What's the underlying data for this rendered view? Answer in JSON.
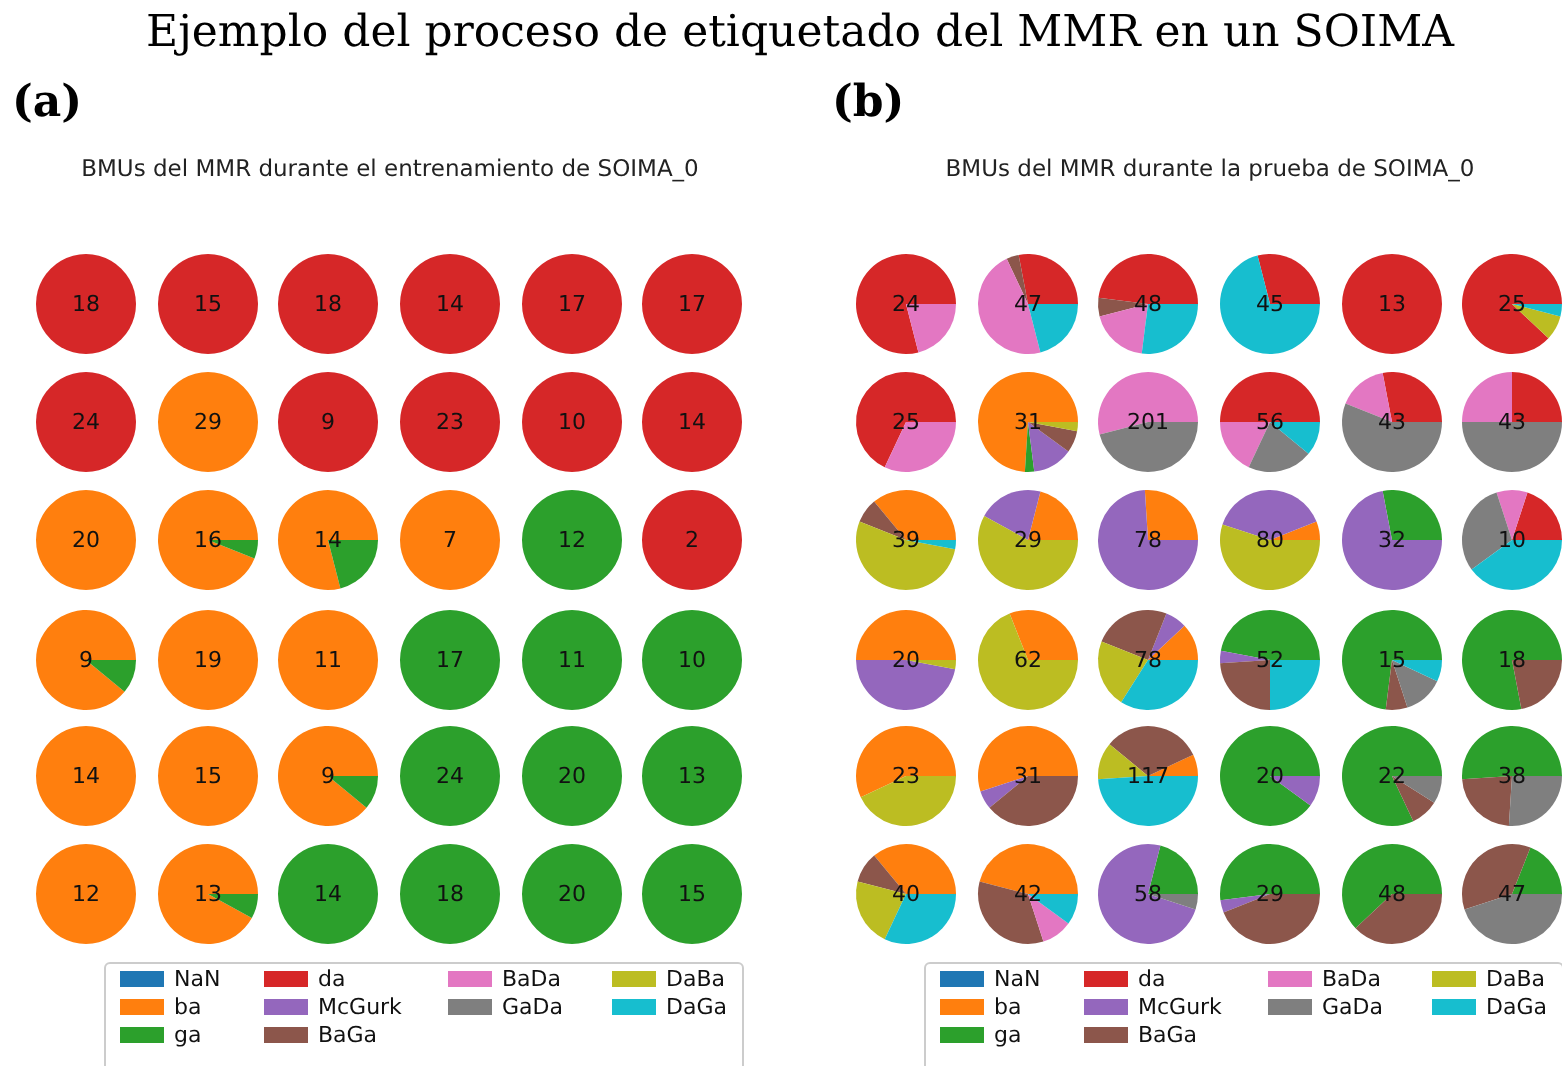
{
  "chart_data": [
    {
      "type": "pie",
      "title": "Ejemplo del proceso de etiquetado del MMR en un SOIMA",
      "subtitle": "BMUs del MMR durante el entrenamiento de SOIMA_0",
      "annotations": [
        "(a)"
      ],
      "legend": "bottom",
      "categories": [
        "NaN",
        "ba",
        "ga",
        "da",
        "McGurk",
        "BaGa",
        "BaDa",
        "GaDa",
        "DaBa",
        "DaGa"
      ],
      "colors": [
        "#1f77b4",
        "#ff7f0e",
        "#2ca02c",
        "#d62728",
        "#9467bd",
        "#8c564b",
        "#e377c2",
        "#7f7f7f",
        "#bcbd22",
        "#17becf"
      ],
      "series": [
        {
          "name": "18",
          "values": [
            null,
            null,
            null,
            100,
            null,
            null,
            null,
            null,
            null,
            null
          ]
        },
        {
          "name": "15",
          "values": [
            null,
            null,
            null,
            100,
            null,
            null,
            null,
            null,
            null,
            null
          ]
        },
        {
          "name": "18",
          "values": [
            null,
            null,
            null,
            100,
            null,
            null,
            null,
            null,
            null,
            null
          ]
        },
        {
          "name": "14",
          "values": [
            null,
            null,
            null,
            100,
            null,
            null,
            null,
            null,
            null,
            null
          ]
        },
        {
          "name": "17",
          "values": [
            null,
            null,
            null,
            100,
            null,
            null,
            null,
            null,
            null,
            null
          ]
        },
        {
          "name": "17",
          "values": [
            null,
            null,
            null,
            100,
            null,
            null,
            null,
            null,
            null,
            null
          ]
        },
        {
          "name": "24",
          "values": [
            null,
            null,
            null,
            100,
            null,
            null,
            null,
            null,
            null,
            null
          ]
        },
        {
          "name": "29",
          "values": [
            null,
            100,
            null,
            null,
            null,
            null,
            null,
            null,
            null,
            null
          ]
        },
        {
          "name": "9",
          "values": [
            null,
            null,
            null,
            100,
            null,
            null,
            null,
            null,
            null,
            null
          ]
        },
        {
          "name": "23",
          "values": [
            null,
            null,
            null,
            100,
            null,
            null,
            null,
            null,
            null,
            null
          ]
        },
        {
          "name": "10",
          "values": [
            null,
            null,
            null,
            100,
            null,
            null,
            null,
            null,
            null,
            null
          ]
        },
        {
          "name": "14",
          "values": [
            null,
            null,
            null,
            100,
            null,
            null,
            null,
            null,
            null,
            null
          ]
        },
        {
          "name": "20",
          "values": [
            null,
            100,
            null,
            null,
            null,
            null,
            null,
            null,
            null,
            null
          ]
        },
        {
          "name": "16",
          "values": [
            null,
            94,
            6,
            null,
            null,
            null,
            null,
            null,
            null,
            null
          ]
        },
        {
          "name": "14",
          "values": [
            null,
            79,
            21,
            null,
            null,
            null,
            null,
            null,
            null,
            null
          ]
        },
        {
          "name": "7",
          "values": [
            null,
            100,
            null,
            null,
            null,
            null,
            null,
            null,
            null,
            null
          ]
        },
        {
          "name": "12",
          "values": [
            null,
            null,
            100,
            null,
            null,
            null,
            null,
            null,
            null,
            null
          ]
        },
        {
          "name": "2",
          "values": [
            null,
            null,
            null,
            100,
            null,
            null,
            null,
            null,
            null,
            null
          ]
        },
        {
          "name": "9",
          "values": [
            null,
            89,
            11,
            null,
            null,
            null,
            null,
            null,
            null,
            null
          ]
        },
        {
          "name": "19",
          "values": [
            null,
            100,
            null,
            null,
            null,
            null,
            null,
            null,
            null,
            null
          ]
        },
        {
          "name": "11",
          "values": [
            null,
            100,
            null,
            null,
            null,
            null,
            null,
            null,
            null,
            null
          ]
        },
        {
          "name": "17",
          "values": [
            null,
            null,
            100,
            null,
            null,
            null,
            null,
            null,
            null,
            null
          ]
        },
        {
          "name": "11",
          "values": [
            null,
            null,
            100,
            null,
            null,
            null,
            null,
            null,
            null,
            null
          ]
        },
        {
          "name": "10",
          "values": [
            null,
            null,
            100,
            null,
            null,
            null,
            null,
            null,
            null,
            null
          ]
        },
        {
          "name": "14",
          "values": [
            null,
            100,
            null,
            null,
            null,
            null,
            null,
            null,
            null,
            null
          ]
        },
        {
          "name": "15",
          "values": [
            null,
            100,
            null,
            null,
            null,
            null,
            null,
            null,
            null,
            null
          ]
        },
        {
          "name": "9",
          "values": [
            null,
            89,
            11,
            null,
            null,
            null,
            null,
            null,
            null,
            null
          ]
        },
        {
          "name": "24",
          "values": [
            null,
            null,
            100,
            null,
            null,
            null,
            null,
            null,
            null,
            null
          ]
        },
        {
          "name": "20",
          "values": [
            null,
            null,
            100,
            null,
            null,
            null,
            null,
            null,
            null,
            null
          ]
        },
        {
          "name": "13",
          "values": [
            null,
            null,
            100,
            null,
            null,
            null,
            null,
            null,
            null,
            null
          ]
        },
        {
          "name": "12",
          "values": [
            null,
            100,
            null,
            null,
            null,
            null,
            null,
            null,
            null,
            null
          ]
        },
        {
          "name": "13",
          "values": [
            null,
            92,
            8,
            null,
            null,
            null,
            null,
            null,
            null,
            null
          ]
        },
        {
          "name": "14",
          "values": [
            null,
            null,
            100,
            null,
            null,
            null,
            null,
            null,
            null,
            null
          ]
        },
        {
          "name": "18",
          "values": [
            null,
            null,
            100,
            null,
            null,
            null,
            null,
            null,
            null,
            null
          ]
        },
        {
          "name": "20",
          "values": [
            null,
            null,
            100,
            null,
            null,
            null,
            null,
            null,
            null,
            null
          ]
        },
        {
          "name": "15",
          "values": [
            null,
            null,
            100,
            null,
            null,
            null,
            null,
            null,
            null,
            null
          ]
        }
      ]
    },
    {
      "type": "pie",
      "subtitle": "BMUs del MMR durante la prueba de SOIMA_0",
      "annotations": [
        "(b)"
      ],
      "legend": "bottom",
      "categories": [
        "NaN",
        "ba",
        "ga",
        "da",
        "McGurk",
        "BaGa",
        "BaDa",
        "GaDa",
        "DaBa",
        "DaGa"
      ],
      "colors": [
        "#1f77b4",
        "#ff7f0e",
        "#2ca02c",
        "#d62728",
        "#9467bd",
        "#8c564b",
        "#e377c2",
        "#7f7f7f",
        "#bcbd22",
        "#17becf"
      ],
      "series": [
        {
          "name": "24",
          "values": [
            null,
            null,
            null,
            79,
            null,
            null,
            21,
            null,
            null,
            null
          ]
        },
        {
          "name": "47",
          "values": [
            null,
            null,
            null,
            28,
            null,
            4,
            47,
            null,
            null,
            21
          ]
        },
        {
          "name": "48",
          "values": [
            null,
            null,
            null,
            48,
            null,
            6,
            19,
            null,
            null,
            27
          ]
        },
        {
          "name": "45",
          "values": [
            null,
            null,
            null,
            29,
            null,
            null,
            null,
            null,
            null,
            71
          ]
        },
        {
          "name": "13",
          "values": [
            null,
            null,
            null,
            100,
            null,
            null,
            null,
            null,
            null,
            null
          ]
        },
        {
          "name": "25",
          "values": [
            null,
            null,
            null,
            88,
            null,
            null,
            null,
            null,
            8,
            4
          ]
        },
        {
          "name": "25",
          "values": [
            null,
            null,
            null,
            68,
            null,
            null,
            32,
            null,
            null,
            null
          ]
        },
        {
          "name": "31",
          "values": [
            null,
            74,
            3,
            null,
            13,
            7,
            null,
            null,
            3,
            null
          ]
        },
        {
          "name": "201",
          "values": [
            null,
            null,
            null,
            null,
            null,
            null,
            54,
            46,
            null,
            null
          ]
        },
        {
          "name": "56",
          "values": [
            null,
            null,
            null,
            50,
            null,
            null,
            18,
            21,
            null,
            11
          ]
        },
        {
          "name": "43",
          "values": [
            null,
            null,
            null,
            28,
            null,
            null,
            16,
            56,
            null,
            null
          ]
        },
        {
          "name": "43",
          "values": [
            null,
            null,
            null,
            25,
            null,
            null,
            25,
            50,
            null,
            null
          ]
        },
        {
          "name": "39",
          "values": [
            null,
            36,
            null,
            null,
            null,
            8,
            null,
            null,
            53,
            3
          ]
        },
        {
          "name": "29",
          "values": [
            null,
            21,
            null,
            null,
            21,
            null,
            null,
            null,
            58,
            null
          ]
        },
        {
          "name": "78",
          "values": [
            null,
            26,
            null,
            null,
            74,
            null,
            null,
            null,
            null,
            null
          ]
        },
        {
          "name": "80",
          "values": [
            null,
            6,
            null,
            null,
            39,
            null,
            null,
            null,
            55,
            null
          ]
        },
        {
          "name": "32",
          "values": [
            null,
            null,
            28,
            null,
            72,
            null,
            null,
            null,
            null,
            null
          ]
        },
        {
          "name": "10",
          "values": [
            null,
            null,
            null,
            20,
            null,
            null,
            10,
            30,
            null,
            40
          ]
        },
        {
          "name": "20",
          "values": [
            null,
            50,
            null,
            null,
            47,
            null,
            null,
            null,
            3,
            null
          ]
        },
        {
          "name": "62",
          "values": [
            null,
            31,
            null,
            null,
            null,
            null,
            null,
            null,
            69,
            null
          ]
        },
        {
          "name": "78",
          "values": [
            null,
            12,
            null,
            null,
            7,
            25,
            null,
            null,
            22,
            34
          ]
        },
        {
          "name": "52",
          "values": [
            null,
            null,
            47,
            null,
            4,
            24,
            null,
            null,
            null,
            25
          ]
        },
        {
          "name": "15",
          "values": [
            null,
            null,
            73,
            null,
            null,
            7,
            null,
            13,
            null,
            7
          ]
        },
        {
          "name": "18",
          "values": [
            null,
            null,
            78,
            null,
            null,
            22,
            null,
            null,
            null,
            null
          ]
        },
        {
          "name": "23",
          "values": [
            null,
            57,
            null,
            null,
            null,
            null,
            null,
            null,
            43,
            null
          ]
        },
        {
          "name": "31",
          "values": [
            null,
            55,
            null,
            null,
            6,
            39,
            null,
            null,
            null,
            null
          ]
        },
        {
          "name": "117",
          "values": [
            null,
            7,
            null,
            null,
            null,
            32,
            null,
            null,
            12,
            49
          ]
        },
        {
          "name": "20",
          "values": [
            null,
            null,
            90,
            null,
            10,
            null,
            null,
            null,
            null,
            null
          ]
        },
        {
          "name": "22",
          "values": [
            null,
            null,
            82,
            null,
            null,
            9,
            null,
            9,
            null,
            null
          ]
        },
        {
          "name": "38",
          "values": [
            null,
            null,
            51,
            null,
            null,
            23,
            null,
            26,
            null,
            null
          ]
        },
        {
          "name": "40",
          "values": [
            null,
            36,
            null,
            null,
            null,
            10,
            null,
            null,
            22,
            32
          ]
        },
        {
          "name": "42",
          "values": [
            null,
            46,
            null,
            null,
            null,
            34,
            10,
            null,
            null,
            10
          ]
        },
        {
          "name": "58",
          "values": [
            null,
            null,
            21,
            null,
            74,
            null,
            null,
            5,
            null,
            null
          ]
        },
        {
          "name": "29",
          "values": [
            null,
            null,
            52,
            null,
            4,
            44,
            null,
            null,
            null,
            null
          ]
        },
        {
          "name": "48",
          "values": [
            null,
            null,
            62,
            null,
            null,
            38,
            null,
            null,
            null,
            null
          ]
        },
        {
          "name": "47",
          "values": [
            null,
            null,
            19,
            null,
            null,
            36,
            null,
            45,
            null,
            null
          ]
        }
      ]
    }
  ]
}
